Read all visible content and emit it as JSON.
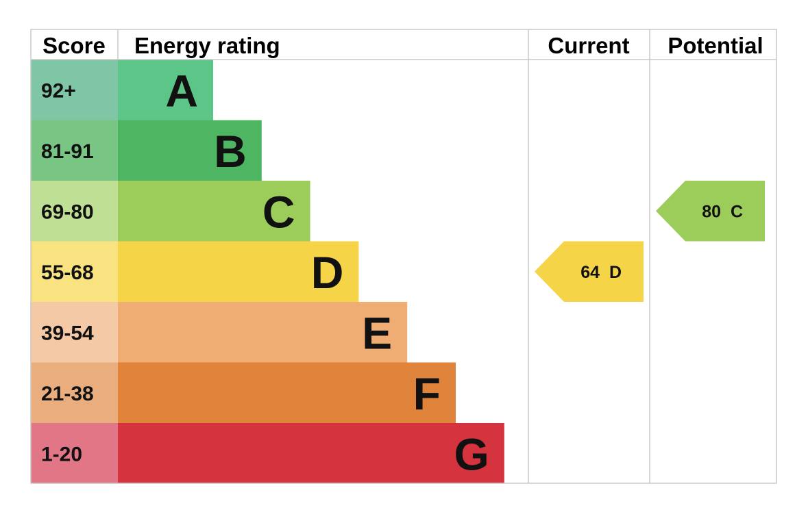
{
  "headers": {
    "score": "Score",
    "rating": "Energy rating",
    "current": "Current",
    "potential": "Potential"
  },
  "chart_data": {
    "type": "bar",
    "bands": [
      {
        "letter": "A",
        "range": "92+",
        "band_color": "#5bc687",
        "score_color": "#7fc6a6"
      },
      {
        "letter": "B",
        "range": "81-91",
        "band_color": "#4eb562",
        "score_color": "#78c584"
      },
      {
        "letter": "C",
        "range": "69-80",
        "band_color": "#9ccd5a",
        "score_color": "#bfe094"
      },
      {
        "letter": "D",
        "range": "55-68",
        "band_color": "#f6d448",
        "score_color": "#f9e380"
      },
      {
        "letter": "E",
        "range": "39-54",
        "band_color": "#efad74",
        "score_color": "#f4c9a6"
      },
      {
        "letter": "F",
        "range": "21-38",
        "band_color": "#e0843b",
        "score_color": "#eaae7e"
      },
      {
        "letter": "G",
        "range": "1-20",
        "band_color": "#d5343f",
        "score_color": "#e17686"
      }
    ],
    "current": {
      "value": "64",
      "band": "D",
      "color": "#f6d448"
    },
    "potential": {
      "value": "80",
      "band": "C",
      "color": "#9ccd5a"
    }
  }
}
